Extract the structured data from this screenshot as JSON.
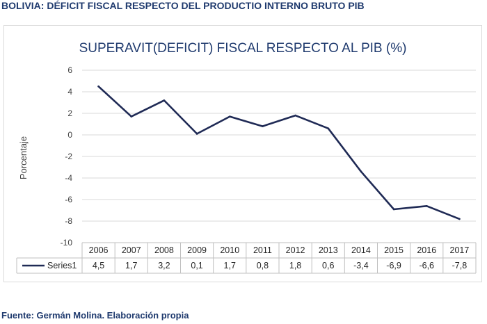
{
  "header": {
    "title": "BOLIVIA: DÉFICIT FISCAL RESPECTO DEL PRODUCTIO INTERNO BRUTO PIB"
  },
  "footer": {
    "source": "Fuente:  Germán Molina. Elaboración propia"
  },
  "colors": {
    "header_text": "#1f3a6e",
    "line": "#1f2a55",
    "grid": "#d9d9d9",
    "axis_text": "#404040",
    "title_text": "#1f3a6e"
  },
  "chart_data": {
    "type": "line",
    "title": "SUPERAVIT(DEFICIT) FISCAL RESPECTO AL PIB (%)",
    "xlabel": "",
    "ylabel": "Porcentaje",
    "ylim": [
      -10,
      6
    ],
    "yticks": [
      6,
      4,
      2,
      0,
      -2,
      -4,
      -6,
      -8,
      -10
    ],
    "grid": true,
    "legend": "data-table",
    "categories": [
      "2006",
      "2007",
      "2008",
      "2009",
      "2010",
      "2011",
      "2012",
      "2013",
      "2014",
      "2015",
      "2016",
      "2017"
    ],
    "series": [
      {
        "name": "Series1",
        "values": [
          4.5,
          1.7,
          3.2,
          0.1,
          1.7,
          0.8,
          1.8,
          0.6,
          -3.4,
          -6.9,
          -6.6,
          -7.8
        ],
        "labels": [
          "4,5",
          "1,7",
          "3,2",
          "0,1",
          "1,7",
          "0,8",
          "1,8",
          "0,6",
          "-3,4",
          "-6,9",
          "-6,6",
          "-7,8"
        ]
      }
    ]
  }
}
